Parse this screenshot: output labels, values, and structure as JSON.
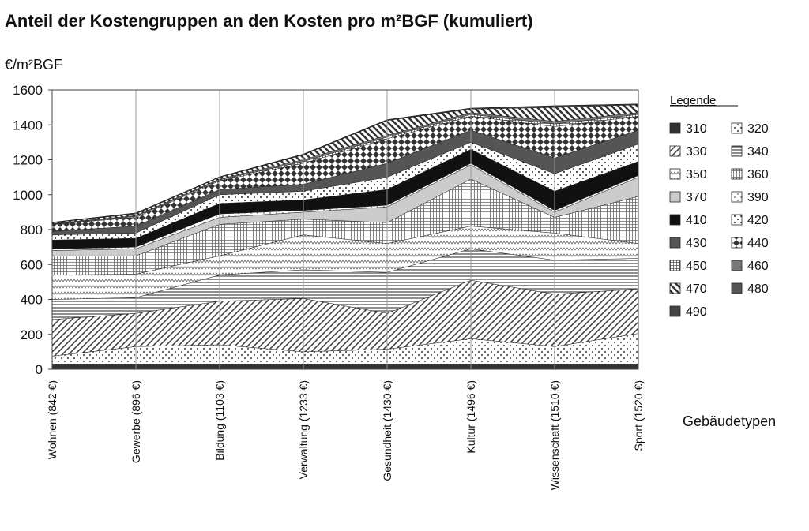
{
  "chart_data": {
    "type": "stacked-area",
    "title": "Anteil der Kostengruppen an den Kosten pro m²BGF (kumuliert)",
    "y_label": "€/m²BGF",
    "x_label": "Gebäudetypen",
    "legend_title": "Legende",
    "categories": [
      "Wohnen (842 €)",
      "Gewerbe (896 €)",
      "Bildung (1103 €)",
      "Verwaltung (1233 €)",
      "Gesundheit (1430 €)",
      "Kultur (1496 €)",
      "Wissenschaft (1510 €)",
      "Sport (1520 €)"
    ],
    "ylim": [
      0,
      1600
    ],
    "yticks": [
      0,
      200,
      400,
      600,
      800,
      1000,
      1200,
      1400,
      1600
    ],
    "grid": "vertical",
    "series": [
      {
        "name": "310",
        "color": "#333333",
        "pattern": "solid",
        "values": [
          30,
          30,
          30,
          30,
          30,
          30,
          30,
          30
        ]
      },
      {
        "name": "320",
        "color": "#555555",
        "pattern": "dots",
        "values": [
          45,
          100,
          110,
          70,
          85,
          145,
          100,
          175
        ]
      },
      {
        "name": "330",
        "color": "#444444",
        "pattern": "diag",
        "values": [
          210,
          190,
          250,
          305,
          205,
          335,
          300,
          255
        ]
      },
      {
        "name": "340",
        "color": "#444444",
        "pattern": "hlines",
        "values": [
          115,
          90,
          150,
          165,
          235,
          180,
          195,
          175
        ]
      },
      {
        "name": "350",
        "color": "#777777",
        "pattern": "zigzag",
        "values": [
          140,
          135,
          110,
          200,
          165,
          130,
          155,
          85
        ]
      },
      {
        "name": "360",
        "color": "#666666",
        "pattern": "grid",
        "values": [
          110,
          105,
          180,
          90,
          120,
          270,
          90,
          270
        ]
      },
      {
        "name": "370",
        "color": "#cccccc",
        "pattern": "solid",
        "values": [
          30,
          40,
          40,
          40,
          90,
          80,
          30,
          110
        ]
      },
      {
        "name": "390",
        "color": "#999999",
        "pattern": "dots",
        "values": [
          10,
          10,
          20,
          10,
          10,
          10,
          10,
          10
        ]
      },
      {
        "name": "410",
        "color": "#111111",
        "pattern": "solid",
        "values": [
          50,
          50,
          60,
          60,
          90,
          80,
          110,
          80
        ]
      },
      {
        "name": "420",
        "color": "#444444",
        "pattern": "dots",
        "values": [
          30,
          30,
          50,
          50,
          70,
          40,
          100,
          100
        ]
      },
      {
        "name": "430",
        "color": "#555555",
        "pattern": "solid",
        "values": [
          20,
          40,
          30,
          40,
          80,
          70,
          90,
          80
        ]
      },
      {
        "name": "440",
        "color": "#333333",
        "pattern": "checker",
        "values": [
          40,
          50,
          50,
          120,
          140,
          80,
          180,
          80
        ]
      },
      {
        "name": "450",
        "color": "#555555",
        "pattern": "grid",
        "values": [
          2,
          5,
          5,
          10,
          10,
          10,
          15,
          10
        ]
      },
      {
        "name": "460",
        "color": "#777777",
        "pattern": "solid",
        "values": [
          3,
          5,
          5,
          10,
          10,
          10,
          15,
          10
        ]
      },
      {
        "name": "470",
        "color": "#333333",
        "pattern": "backdiag",
        "values": [
          5,
          10,
          10,
          28,
          85,
          20,
          80,
          45
        ]
      },
      {
        "name": "480",
        "color": "#555555",
        "pattern": "solid",
        "values": [
          1,
          4,
          2,
          3,
          3,
          4,
          7,
          3
        ]
      },
      {
        "name": "490",
        "color": "#444444",
        "pattern": "solid",
        "values": [
          1,
          2,
          1,
          2,
          2,
          2,
          3,
          2
        ]
      }
    ]
  }
}
